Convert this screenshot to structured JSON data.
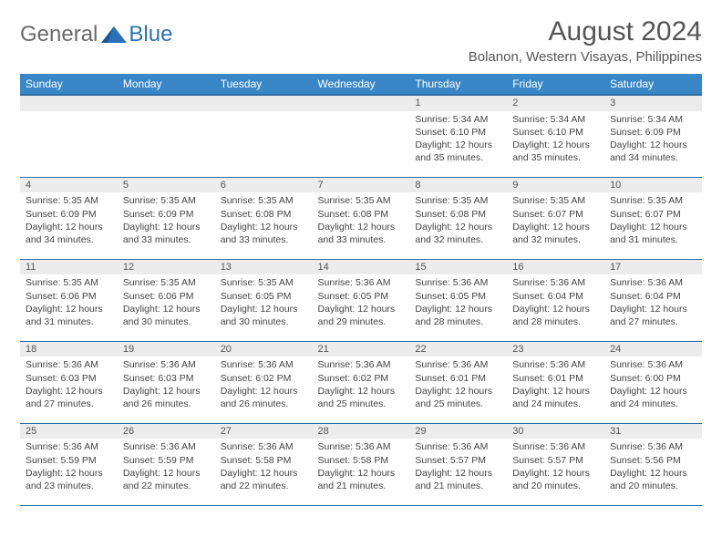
{
  "logo": {
    "general": "General",
    "blue": "Blue"
  },
  "title": "August 2024",
  "location": "Bolanon, Western Visayas, Philippines",
  "colors": {
    "header_bg": "#3a87c8",
    "header_border": "#2f6da3",
    "daybar_bg": "#ececec",
    "logo_gray": "#6a6a6a",
    "logo_blue": "#2a71b8"
  },
  "dayNames": [
    "Sunday",
    "Monday",
    "Tuesday",
    "Wednesday",
    "Thursday",
    "Friday",
    "Saturday"
  ],
  "weeks": [
    [
      null,
      null,
      null,
      null,
      {
        "n": "1",
        "sr": "5:34 AM",
        "ss": "6:10 PM",
        "dl": "12 hours and 35 minutes."
      },
      {
        "n": "2",
        "sr": "5:34 AM",
        "ss": "6:10 PM",
        "dl": "12 hours and 35 minutes."
      },
      {
        "n": "3",
        "sr": "5:34 AM",
        "ss": "6:09 PM",
        "dl": "12 hours and 34 minutes."
      }
    ],
    [
      {
        "n": "4",
        "sr": "5:35 AM",
        "ss": "6:09 PM",
        "dl": "12 hours and 34 minutes."
      },
      {
        "n": "5",
        "sr": "5:35 AM",
        "ss": "6:09 PM",
        "dl": "12 hours and 33 minutes."
      },
      {
        "n": "6",
        "sr": "5:35 AM",
        "ss": "6:08 PM",
        "dl": "12 hours and 33 minutes."
      },
      {
        "n": "7",
        "sr": "5:35 AM",
        "ss": "6:08 PM",
        "dl": "12 hours and 33 minutes."
      },
      {
        "n": "8",
        "sr": "5:35 AM",
        "ss": "6:08 PM",
        "dl": "12 hours and 32 minutes."
      },
      {
        "n": "9",
        "sr": "5:35 AM",
        "ss": "6:07 PM",
        "dl": "12 hours and 32 minutes."
      },
      {
        "n": "10",
        "sr": "5:35 AM",
        "ss": "6:07 PM",
        "dl": "12 hours and 31 minutes."
      }
    ],
    [
      {
        "n": "11",
        "sr": "5:35 AM",
        "ss": "6:06 PM",
        "dl": "12 hours and 31 minutes."
      },
      {
        "n": "12",
        "sr": "5:35 AM",
        "ss": "6:06 PM",
        "dl": "12 hours and 30 minutes."
      },
      {
        "n": "13",
        "sr": "5:35 AM",
        "ss": "6:05 PM",
        "dl": "12 hours and 30 minutes."
      },
      {
        "n": "14",
        "sr": "5:36 AM",
        "ss": "6:05 PM",
        "dl": "12 hours and 29 minutes."
      },
      {
        "n": "15",
        "sr": "5:36 AM",
        "ss": "6:05 PM",
        "dl": "12 hours and 28 minutes."
      },
      {
        "n": "16",
        "sr": "5:36 AM",
        "ss": "6:04 PM",
        "dl": "12 hours and 28 minutes."
      },
      {
        "n": "17",
        "sr": "5:36 AM",
        "ss": "6:04 PM",
        "dl": "12 hours and 27 minutes."
      }
    ],
    [
      {
        "n": "18",
        "sr": "5:36 AM",
        "ss": "6:03 PM",
        "dl": "12 hours and 27 minutes."
      },
      {
        "n": "19",
        "sr": "5:36 AM",
        "ss": "6:03 PM",
        "dl": "12 hours and 26 minutes."
      },
      {
        "n": "20",
        "sr": "5:36 AM",
        "ss": "6:02 PM",
        "dl": "12 hours and 26 minutes."
      },
      {
        "n": "21",
        "sr": "5:36 AM",
        "ss": "6:02 PM",
        "dl": "12 hours and 25 minutes."
      },
      {
        "n": "22",
        "sr": "5:36 AM",
        "ss": "6:01 PM",
        "dl": "12 hours and 25 minutes."
      },
      {
        "n": "23",
        "sr": "5:36 AM",
        "ss": "6:01 PM",
        "dl": "12 hours and 24 minutes."
      },
      {
        "n": "24",
        "sr": "5:36 AM",
        "ss": "6:00 PM",
        "dl": "12 hours and 24 minutes."
      }
    ],
    [
      {
        "n": "25",
        "sr": "5:36 AM",
        "ss": "5:59 PM",
        "dl": "12 hours and 23 minutes."
      },
      {
        "n": "26",
        "sr": "5:36 AM",
        "ss": "5:59 PM",
        "dl": "12 hours and 22 minutes."
      },
      {
        "n": "27",
        "sr": "5:36 AM",
        "ss": "5:58 PM",
        "dl": "12 hours and 22 minutes."
      },
      {
        "n": "28",
        "sr": "5:36 AM",
        "ss": "5:58 PM",
        "dl": "12 hours and 21 minutes."
      },
      {
        "n": "29",
        "sr": "5:36 AM",
        "ss": "5:57 PM",
        "dl": "12 hours and 21 minutes."
      },
      {
        "n": "30",
        "sr": "5:36 AM",
        "ss": "5:57 PM",
        "dl": "12 hours and 20 minutes."
      },
      {
        "n": "31",
        "sr": "5:36 AM",
        "ss": "5:56 PM",
        "dl": "12 hours and 20 minutes."
      }
    ]
  ],
  "labels": {
    "sunrise": "Sunrise: ",
    "sunset": "Sunset: ",
    "daylight": "Daylight: "
  }
}
